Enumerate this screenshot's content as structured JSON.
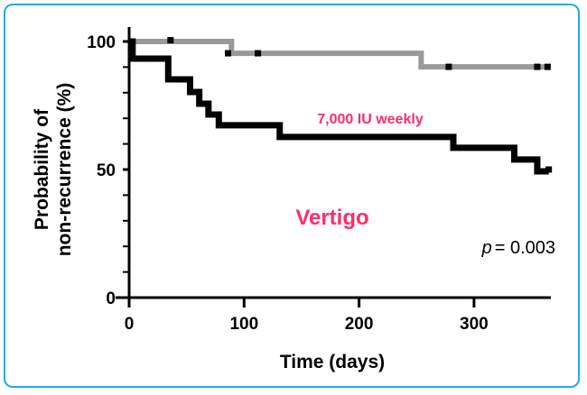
{
  "chart_data": {
    "type": "line",
    "subtype": "kaplan-meier step",
    "title": "Vertigo",
    "xlabel": "Time (days)",
    "ylabel": [
      "Probability of",
      "non-recurrence (%)"
    ],
    "xlim": [
      0,
      370
    ],
    "ylim": [
      0,
      100
    ],
    "xticks": [
      "0",
      "100",
      "200",
      "300"
    ],
    "yticks": [
      "0",
      "50",
      "100"
    ],
    "grid": false,
    "annotations": {
      "group_label": "7,000 IU weekly",
      "p_label": "p",
      "p_value": "= 0.003"
    },
    "series": [
      {
        "color": "#999999",
        "steps": [
          [
            0,
            100
          ],
          [
            89,
            95.4
          ],
          [
            254,
            90.1
          ],
          [
            365,
            90.1
          ]
        ],
        "censored": [
          [
            36,
            100.5
          ],
          [
            86,
            95.4
          ],
          [
            112,
            95.4
          ],
          [
            278,
            90.1
          ],
          [
            355,
            90.1
          ],
          [
            364,
            90.1
          ]
        ]
      },
      {
        "name": "7,000 IU weekly",
        "color": "#000000",
        "steps": [
          [
            0,
            100
          ],
          [
            3,
            93.3
          ],
          [
            34,
            85.2
          ],
          [
            53,
            80.3
          ],
          [
            61,
            75.7
          ],
          [
            69,
            71.5
          ],
          [
            78,
            67.3
          ],
          [
            131,
            62.7
          ],
          [
            282,
            58.5
          ],
          [
            335,
            53.9
          ],
          [
            355,
            49.3
          ],
          [
            365,
            49.3
          ]
        ],
        "censored": [
          [
            16,
            93.3
          ],
          [
            29,
            93.3
          ],
          [
            49,
            85.2
          ],
          [
            365,
            50
          ]
        ]
      }
    ]
  },
  "colors": {
    "annotation": "#ff2d6a",
    "frame": "#29a8e0"
  }
}
